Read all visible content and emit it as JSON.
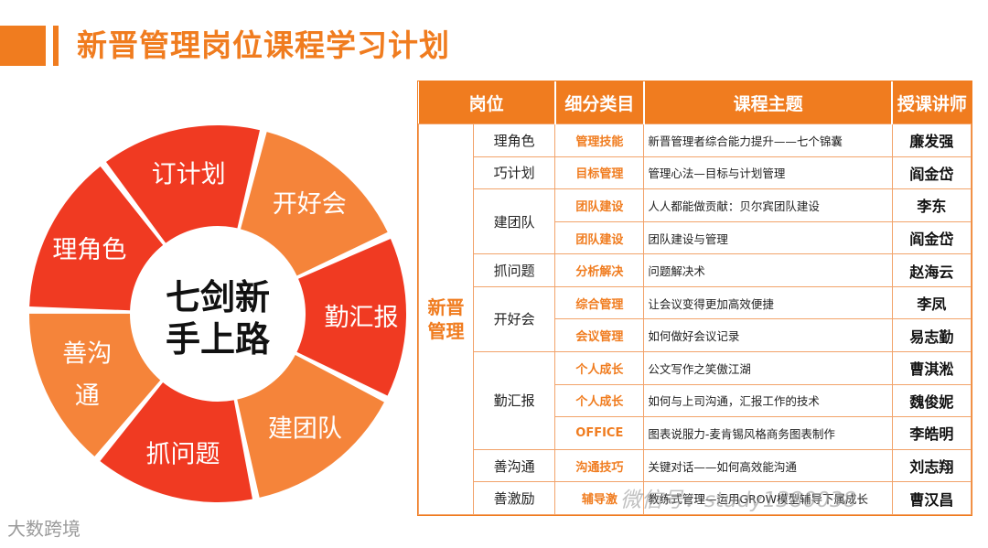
{
  "page_title": "新晋管理岗位课程学习计划",
  "wheel": {
    "center_line1": "七剑新",
    "center_line2": "手上路",
    "segments": [
      {
        "lines": [
          "开好会"
        ],
        "color": "#f5843a"
      },
      {
        "lines": [
          "勤汇报"
        ],
        "color": "#f03a22"
      },
      {
        "lines": [
          "建团队"
        ],
        "color": "#f5843a"
      },
      {
        "lines": [
          "抓问题"
        ],
        "color": "#f03a22"
      },
      {
        "lines": [
          "善沟",
          "通"
        ],
        "color": "#f5843a"
      },
      {
        "lines": [
          "理角色"
        ],
        "color": "#f03a22"
      },
      {
        "lines": [
          "订计划"
        ],
        "color": "#f03a22"
      }
    ]
  },
  "table": {
    "headers": [
      "岗位",
      "细分类目",
      "课程主题",
      "授课讲师"
    ],
    "department": "新晋管理",
    "rows": [
      {
        "role": "理角色",
        "category": "管理技能",
        "topic": "新晋管理者综合能力提升——七个锦囊",
        "teacher": "廉发强"
      },
      {
        "role": "巧计划",
        "category": "目标管理",
        "topic": "管理心法—目标与计划管理",
        "teacher": "阎金岱"
      },
      {
        "role": "建团队",
        "category": "团队建设",
        "topic": "人人都能做贡献：贝尔宾团队建设",
        "teacher": "李东"
      },
      {
        "role": "",
        "category": "团队建设",
        "topic": "团队建设与管理",
        "teacher": "阎金岱"
      },
      {
        "role": "抓问题",
        "category": "分析解决",
        "topic": "问题解决术",
        "teacher": "赵海云"
      },
      {
        "role": "开好会",
        "category": "综合管理",
        "topic": "让会议变得更加高效便捷",
        "teacher": "李凤"
      },
      {
        "role": "",
        "category": "会议管理",
        "topic": "如何做好会议记录",
        "teacher": "易志勤"
      },
      {
        "role": "勤汇报",
        "category": "个人成长",
        "topic": "公文写作之笑傲江湖",
        "teacher": "曹淇淞"
      },
      {
        "role": "",
        "category": "个人成长",
        "topic": "如何与上司沟通，汇报工作的技术",
        "teacher": "魏俊妮"
      },
      {
        "role": "",
        "category": "OFFICE",
        "topic": "图表说服力-麦肯锡风格商务图表制作",
        "teacher": "李皓明"
      },
      {
        "role": "善沟通",
        "category": "沟通技巧",
        "topic": "关键对话——如何高效能沟通",
        "teacher": "刘志翔"
      },
      {
        "role": "善激励",
        "category": "辅导激",
        "topic": "教练式管理—运用GROW模型辅导下属成长",
        "teacher": "曹汉昌"
      }
    ]
  },
  "watermarks": {
    "left": "大数跨境",
    "right": "微信号：study1380038"
  }
}
